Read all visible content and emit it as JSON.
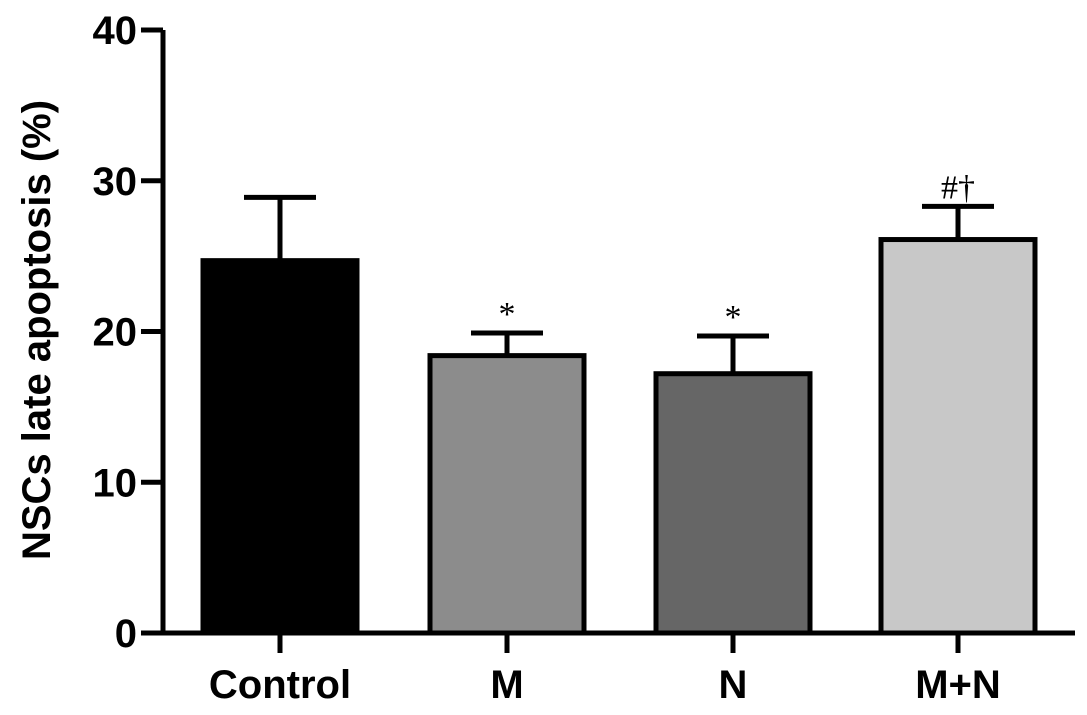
{
  "chart_data": {
    "type": "bar",
    "categories": [
      "Control",
      "M",
      "N",
      "M+N"
    ],
    "values": [
      24.7,
      18.4,
      17.2,
      26.1
    ],
    "errors": [
      4.2,
      1.5,
      2.5,
      2.2
    ],
    "annotations": [
      "",
      "*",
      "*",
      "#†"
    ],
    "bar_colors": [
      "#000000",
      "#8c8c8c",
      "#666666",
      "#c8c8c8"
    ],
    "ylabel": "NSCs late apoptosis (%)",
    "xlabel": "",
    "ylim": [
      0,
      40
    ],
    "yticks": [
      0,
      10,
      20,
      30,
      40
    ],
    "grid": false,
    "legend": "none"
  }
}
